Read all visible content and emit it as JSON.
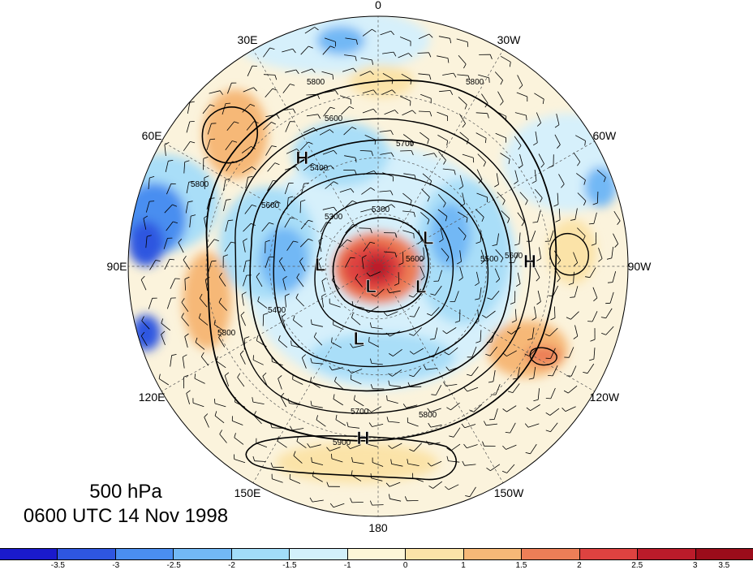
{
  "title": {
    "level": "500 hPa",
    "time": "0600 UTC 14 Nov 1998"
  },
  "longitude_labels": [
    {
      "text": "0",
      "lon": 0
    },
    {
      "text": "30W",
      "lon": -30
    },
    {
      "text": "60W",
      "lon": -60
    },
    {
      "text": "90W",
      "lon": -90
    },
    {
      "text": "120W",
      "lon": -120
    },
    {
      "text": "150W",
      "lon": -150
    },
    {
      "text": "180",
      "lon": 180
    },
    {
      "text": "150E",
      "lon": 150
    },
    {
      "text": "120E",
      "lon": 120
    },
    {
      "text": "90E",
      "lon": 90
    },
    {
      "text": "60E",
      "lon": 60
    },
    {
      "text": "30E",
      "lon": 30
    }
  ],
  "pressure_centers": [
    {
      "symbol": "H",
      "lon": 35,
      "lat": 42
    },
    {
      "symbol": "H",
      "lon": -88,
      "lat": 36
    },
    {
      "symbol": "H",
      "lon": 175,
      "lat": 30
    },
    {
      "symbol": "L",
      "lon": 88,
      "lat": 68
    },
    {
      "symbol": "L",
      "lon": -60,
      "lat": 68
    },
    {
      "symbol": "L",
      "lon": -115,
      "lat": 72
    },
    {
      "symbol": "L",
      "lon": 160,
      "lat": 82
    },
    {
      "symbol": "L",
      "lon": 165,
      "lat": 62
    }
  ],
  "contour_labels": [
    "5800",
    "5600",
    "5700",
    "5400",
    "5300",
    "5300",
    "5600",
    "5800",
    "5500",
    "5600",
    "5600",
    "5400",
    "5800",
    "5700",
    "5800",
    "5900",
    "5800"
  ],
  "colorbar": {
    "colors": [
      "#1a1acc",
      "#2e56e0",
      "#4a8ef0",
      "#72b8f5",
      "#a2dcf8",
      "#d2f0fb",
      "#fdf7d8",
      "#fbe3a8",
      "#f6b877",
      "#ec7e57",
      "#de4240",
      "#bb1b2a",
      "#9b0c1a"
    ],
    "ticks": [
      "-3.5",
      "-3",
      "-2.5",
      "-2",
      "-1.5",
      "-1",
      "0",
      "1",
      "1.5",
      "2",
      "2.5",
      "3",
      "3.5"
    ]
  }
}
